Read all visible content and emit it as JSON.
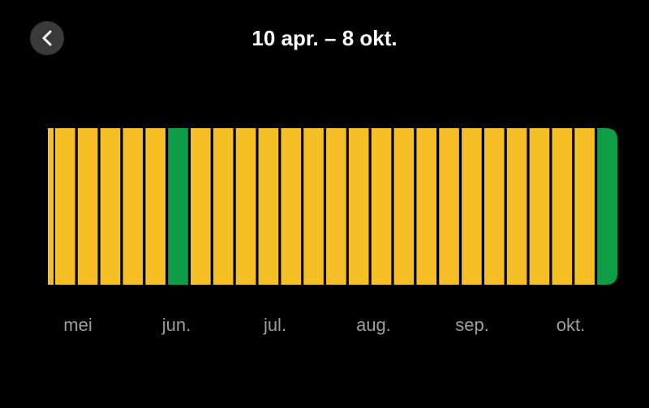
{
  "header": {
    "title": "10 apr. – 8 okt."
  },
  "timeline": {
    "segments": [
      {
        "color": "#f6bf26"
      },
      {
        "color": "#f6bf26"
      },
      {
        "color": "#f6bf26"
      },
      {
        "color": "#f6bf26"
      },
      {
        "color": "#f6bf26"
      },
      {
        "color": "#f6bf26"
      },
      {
        "color": "#0f9d48"
      },
      {
        "color": "#f6bf26"
      },
      {
        "color": "#f6bf26"
      },
      {
        "color": "#f6bf26"
      },
      {
        "color": "#f6bf26"
      },
      {
        "color": "#f6bf26"
      },
      {
        "color": "#f6bf26"
      },
      {
        "color": "#f6bf26"
      },
      {
        "color": "#f6bf26"
      },
      {
        "color": "#f6bf26"
      },
      {
        "color": "#f6bf26"
      },
      {
        "color": "#f6bf26"
      },
      {
        "color": "#f6bf26"
      },
      {
        "color": "#f6bf26"
      },
      {
        "color": "#f6bf26"
      },
      {
        "color": "#f6bf26"
      },
      {
        "color": "#f6bf26"
      },
      {
        "color": "#f6bf26"
      },
      {
        "color": "#f6bf26"
      },
      {
        "color": "#0f9d48"
      }
    ],
    "months": [
      "mei",
      "jun.",
      "jul.",
      "aug.",
      "sep.",
      "okt."
    ]
  }
}
